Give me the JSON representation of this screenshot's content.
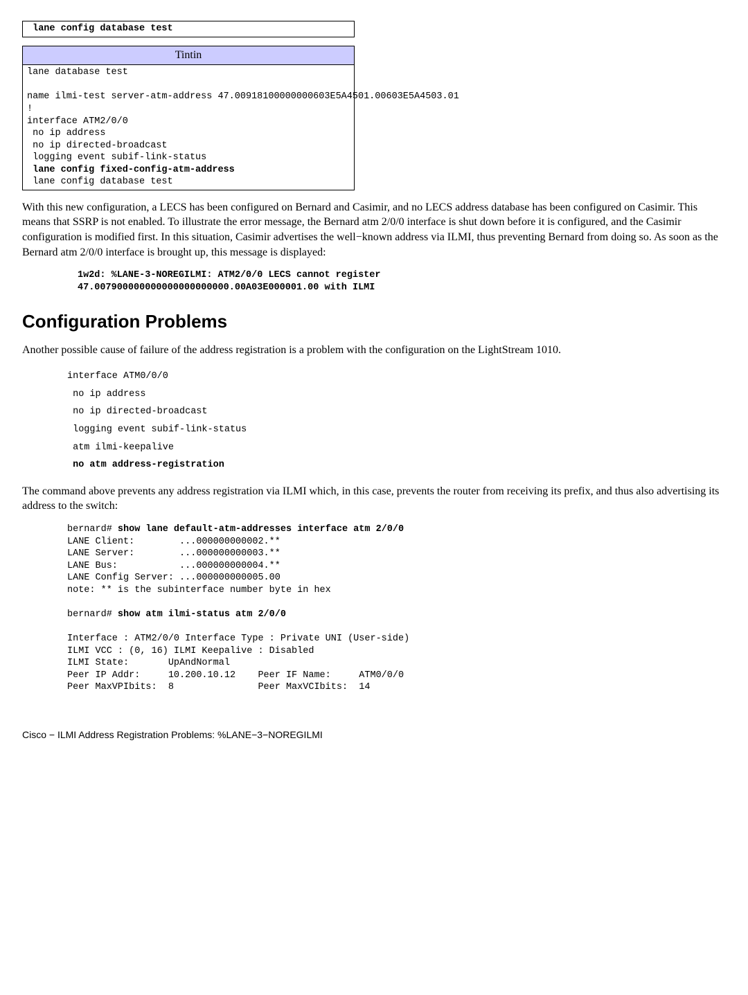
{
  "table1": {
    "cell": " lane config database test"
  },
  "table2": {
    "header": "Tintin",
    "line1": "lane database test",
    "line2_a": "  name ilmi-test server-atm-address 47.00918100000000",
    "line2_b": "603E5A4501.00603E5A4503.01",
    "line3": "!",
    "line4": "interface ATM2/0/0",
    "line5": " no ip address",
    "line6": " no ip directed-broadcast",
    "line7": " logging event subif-link-status",
    "line8": " lane config fixed-config-atm-address",
    "line9": " lane config database test"
  },
  "para1": "With this new configuration, a LECS has been configured on Bernard and Casimir, and no LECS address database has been configured on Casimir. This means that SSRP is not enabled. To illustrate the error message, the Bernard atm 2/0/0 interface is shut down before it is configured, and the Casimir configuration is modified first. In this situation, Casimir advertises the well−known address via ILMI, thus preventing Bernard from doing so. As soon as the Bernard atm 2/0/0 interface is brought up, this message is displayed:",
  "errblock": {
    "l1": "1w2d: %LANE-3-NOREGILMI: ATM2/0/0 LECS cannot register",
    "l2": "47.007900000000000000000000.00A03E000001.00 with ILMI"
  },
  "h2": "Configuration Problems",
  "para2": "Another possible cause of failure of the address registration is a problem with the configuration on the LightStream 1010.",
  "cfgblock": {
    "l1": "interface ATM0/0/0",
    "l2": " no ip address",
    "l3": " no ip directed-broadcast",
    "l4": " logging event subif-link-status",
    "l5": " atm ilmi-keepalive",
    "l6": " no atm address-registration"
  },
  "para3": "The command above prevents any address registration via ILMI which, in this case, prevents the router from receiving its prefix, and thus also advertising its address to the switch:",
  "showblock": {
    "l1a": "bernard# ",
    "l1b": "show lane default-atm-addresses interface atm 2/0/0",
    "l2": "LANE Client:        ...000000000002.**",
    "l3": "LANE Server:        ...000000000003.**",
    "l4": "LANE Bus:           ...000000000004.**",
    "l5": "LANE Config Server: ...000000000005.00",
    "l6": "note: ** is the subinterface number byte in hex",
    "l7": "",
    "l8a": "bernard# ",
    "l8b": "show atm ilmi-status atm 2/0/0",
    "l9": "",
    "l10": "Interface : ATM2/0/0 Interface Type : Private UNI (User-side)",
    "l11": "ILMI VCC : (0, 16) ILMI Keepalive : Disabled",
    "l12": "ILMI State:       UpAndNormal",
    "l13": "Peer IP Addr:     10.200.10.12    Peer IF Name:     ATM0/0/0",
    "l14": "Peer MaxVPIbits:  8               Peer MaxVCIbits:  14"
  },
  "footer": "Cisco − ILMI Address Registration Problems: %LANE−3−NOREGILMI"
}
